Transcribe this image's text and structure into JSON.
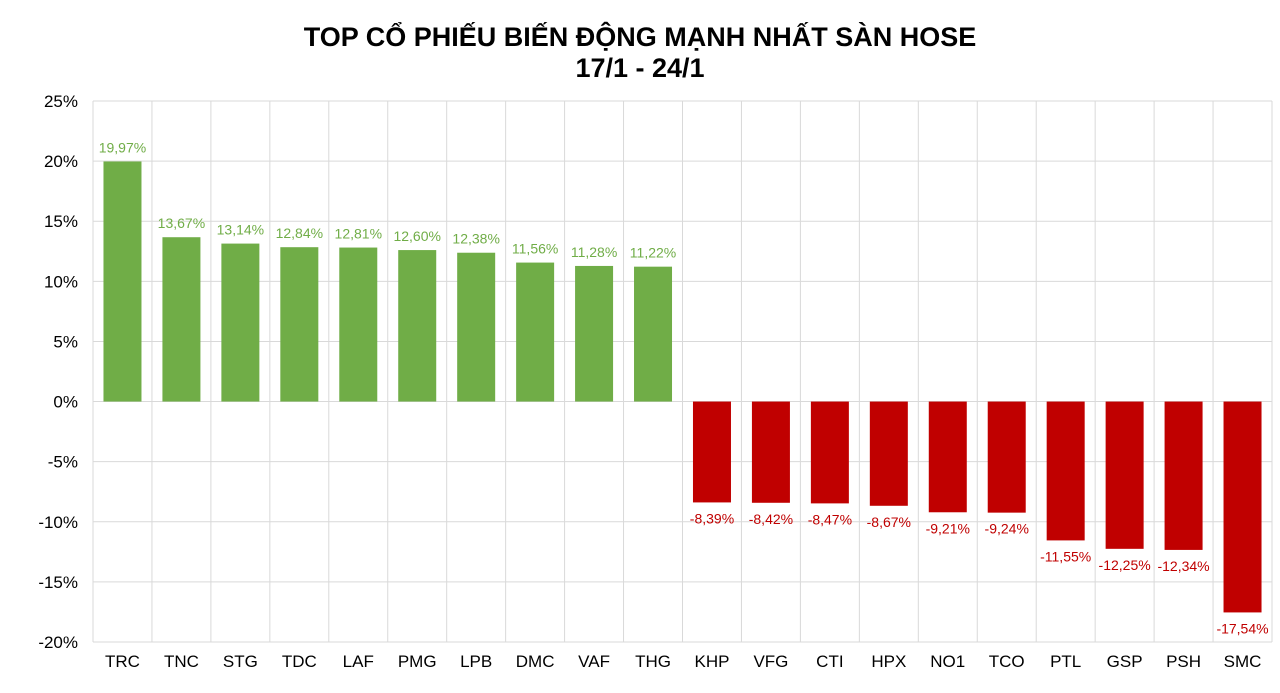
{
  "chart_data": {
    "type": "bar",
    "title": "TOP CỔ PHIẾU BIẾN ĐỘNG MẠNH NHẤT SÀN HOSE",
    "subtitle": "17/1 - 24/1",
    "xlabel": "",
    "ylabel": "",
    "ylim": [
      -20,
      25
    ],
    "y_ticks": [
      25,
      20,
      15,
      10,
      5,
      0,
      -5,
      -10,
      -15,
      -20
    ],
    "y_tick_labels": [
      "25%",
      "20%",
      "15%",
      "10%",
      "5%",
      "0%",
      "-5%",
      "-10%",
      "-15%",
      "-20%"
    ],
    "grid": true,
    "categories": [
      "TRC",
      "TNC",
      "STG",
      "TDC",
      "LAF",
      "PMG",
      "LPB",
      "DMC",
      "VAF",
      "THG",
      "KHP",
      "VFG",
      "CTI",
      "HPX",
      "NO1",
      "TCO",
      "PTL",
      "GSP",
      "PSH",
      "SMC"
    ],
    "values": [
      19.97,
      13.67,
      13.14,
      12.84,
      12.81,
      12.6,
      12.38,
      11.56,
      11.28,
      11.22,
      -8.39,
      -8.42,
      -8.47,
      -8.67,
      -9.21,
      -9.24,
      -11.55,
      -12.25,
      -12.34,
      -17.54
    ],
    "data_labels": [
      "19,97%",
      "13,67%",
      "13,14%",
      "12,84%",
      "12,81%",
      "12,60%",
      "12,38%",
      "11,56%",
      "11,28%",
      "11,22%",
      "-8,39%",
      "-8,42%",
      "-8,47%",
      "-8,67%",
      "-9,21%",
      "-9,24%",
      "-11,55%",
      "-12,25%",
      "-12,34%",
      "-17,54%"
    ],
    "colors": {
      "positive_bar": "#70AD47",
      "negative_bar": "#C00000",
      "positive_label": "#70AD47",
      "negative_label": "#C00000",
      "grid": "#D9D9D9",
      "axis_text": "#000000"
    }
  }
}
